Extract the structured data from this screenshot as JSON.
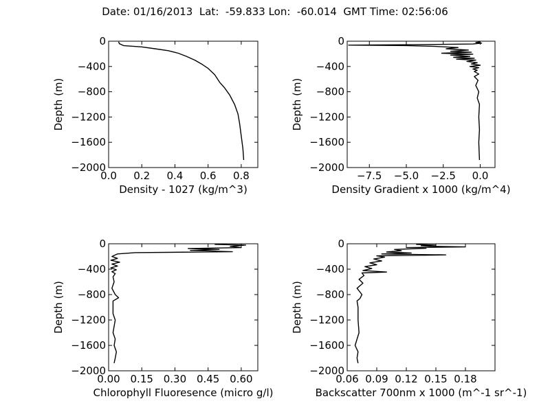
{
  "title": "Date: 01/16/2013  Lat:  -59.833 Lon:  -60.014  GMT Time: 02:56:06",
  "chart_data": [
    {
      "type": "line",
      "xlabel": "Density - 1027 (kg/m^3)",
      "ylabel": "Depth (m)",
      "xlim": [
        0.0,
        0.9
      ],
      "ylim": [
        -2000,
        0
      ],
      "xticks": [
        0.0,
        0.2,
        0.4,
        0.6,
        0.8
      ],
      "xtick_labels": [
        "0.0",
        "0.2",
        "0.4",
        "0.6",
        "0.8"
      ],
      "yticks": [
        0,
        -400,
        -800,
        -1200,
        -1600,
        -2000
      ],
      "ytick_labels": [
        "0",
        "−400",
        "−800",
        "−1200",
        "−1600",
        "−2000"
      ],
      "series": [
        {
          "color": "#000000",
          "points": [
            [
              0.06,
              -10
            ],
            [
              0.065,
              -40
            ],
            [
              0.09,
              -70
            ],
            [
              0.2,
              -90
            ],
            [
              0.28,
              -120
            ],
            [
              0.36,
              -150
            ],
            [
              0.42,
              -190
            ],
            [
              0.47,
              -240
            ],
            [
              0.52,
              -300
            ],
            [
              0.56,
              -360
            ],
            [
              0.6,
              -430
            ],
            [
              0.64,
              -530
            ],
            [
              0.67,
              -650
            ],
            [
              0.7,
              -740
            ],
            [
              0.73,
              -850
            ],
            [
              0.76,
              -1000
            ],
            [
              0.78,
              -1150
            ],
            [
              0.79,
              -1300
            ],
            [
              0.8,
              -1500
            ],
            [
              0.81,
              -1700
            ],
            [
              0.815,
              -1880
            ]
          ]
        }
      ]
    },
    {
      "type": "line",
      "xlabel": "Density Gradient x 1000 (kg/m^4)",
      "ylabel": "Depth (m)",
      "xlim": [
        -9.0,
        1.0
      ],
      "ylim": [
        -2000,
        0
      ],
      "xticks": [
        -7.5,
        -5.0,
        -2.5,
        0.0
      ],
      "xtick_labels": [
        "−7.5",
        "−5.0",
        "−2.5",
        "0.0"
      ],
      "yticks": [
        0,
        -400,
        -800,
        -1200,
        -1600,
        -2000
      ],
      "ytick_labels": [
        "0",
        "−400",
        "−800",
        "−1200",
        "−1600",
        "−2000"
      ],
      "series": [
        {
          "color": "#000000",
          "points": [
            [
              0.0,
              -10
            ],
            [
              -0.3,
              -20
            ],
            [
              0.1,
              -30
            ],
            [
              -0.5,
              -45
            ],
            [
              -4.5,
              -55
            ],
            [
              -8.9,
              -62
            ],
            [
              -5.0,
              -70
            ],
            [
              -3.2,
              -80
            ],
            [
              -1.5,
              -100
            ],
            [
              -2.3,
              -120
            ],
            [
              -0.8,
              -140
            ],
            [
              -2.0,
              -160
            ],
            [
              -0.6,
              -175
            ],
            [
              -2.6,
              -190
            ],
            [
              -0.5,
              -205
            ],
            [
              -2.0,
              -220
            ],
            [
              -0.7,
              -240
            ],
            [
              -1.8,
              -255
            ],
            [
              -0.4,
              -270
            ],
            [
              -1.6,
              -285
            ],
            [
              -0.3,
              -300
            ],
            [
              -0.9,
              -320
            ],
            [
              -0.2,
              -340
            ],
            [
              -0.6,
              -360
            ],
            [
              0.0,
              -380
            ],
            [
              -0.7,
              -400
            ],
            [
              -0.1,
              -420
            ],
            [
              -0.5,
              -440
            ],
            [
              -0.2,
              -460
            ],
            [
              -0.4,
              -480
            ],
            [
              -0.1,
              -520
            ],
            [
              -0.4,
              -560
            ],
            [
              -0.15,
              -620
            ],
            [
              -0.3,
              -700
            ],
            [
              -0.1,
              -800
            ],
            [
              -0.2,
              -900
            ],
            [
              -0.05,
              -1000
            ],
            [
              -0.1,
              -1200
            ],
            [
              -0.05,
              -1400
            ],
            [
              -0.1,
              -1600
            ],
            [
              -0.05,
              -1880
            ]
          ]
        }
      ]
    },
    {
      "type": "line",
      "xlabel": "Chlorophyll Fluoresence (micro g/l)",
      "ylabel": "Depth (m)",
      "xlim": [
        0.0,
        0.675
      ],
      "ylim": [
        -2000,
        0
      ],
      "xticks": [
        0.0,
        0.15,
        0.3,
        0.45,
        0.6
      ],
      "xtick_labels": [
        "0.00",
        "0.15",
        "0.30",
        "0.45",
        "0.60"
      ],
      "yticks": [
        0,
        -400,
        -800,
        -1200,
        -1600,
        -2000
      ],
      "ytick_labels": [
        "0",
        "−400",
        "−800",
        "−1200",
        "−1600",
        "−2000"
      ],
      "series": [
        {
          "color": "#000000",
          "points": [
            [
              0.48,
              -10
            ],
            [
              0.62,
              -20
            ],
            [
              0.55,
              -40
            ],
            [
              0.6,
              -60
            ],
            [
              0.36,
              -75
            ],
            [
              0.5,
              -90
            ],
            [
              0.37,
              -105
            ],
            [
              0.56,
              -125
            ],
            [
              0.12,
              -140
            ],
            [
              0.04,
              -160
            ],
            [
              0.015,
              -200
            ],
            [
              0.04,
              -230
            ],
            [
              0.01,
              -260
            ],
            [
              0.05,
              -290
            ],
            [
              0.015,
              -320
            ],
            [
              0.04,
              -350
            ],
            [
              0.01,
              -380
            ],
            [
              0.035,
              -410
            ],
            [
              0.015,
              -440
            ],
            [
              0.03,
              -470
            ],
            [
              0.02,
              -520
            ],
            [
              0.025,
              -600
            ],
            [
              0.015,
              -700
            ],
            [
              0.03,
              -800
            ],
            [
              0.045,
              -850
            ],
            [
              0.02,
              -900
            ],
            [
              0.02,
              -1100
            ],
            [
              0.03,
              -1200
            ],
            [
              0.02,
              -1400
            ],
            [
              0.03,
              -1500
            ],
            [
              0.025,
              -1600
            ],
            [
              0.035,
              -1700
            ],
            [
              0.03,
              -1800
            ],
            [
              0.025,
              -1880
            ]
          ]
        }
      ]
    },
    {
      "type": "line",
      "xlabel": "Backscatter 700nm x 1000 (m^-1 sr^-1)",
      "ylabel": "Depth (m)",
      "xlim": [
        0.06,
        0.21
      ],
      "ylim": [
        -2000,
        0
      ],
      "xticks": [
        0.06,
        0.09,
        0.12,
        0.15,
        0.18
      ],
      "xtick_labels": [
        "0.06",
        "0.09",
        "0.12",
        "0.15",
        "0.18"
      ],
      "yticks": [
        0,
        -400,
        -800,
        -1200,
        -1600,
        -2000
      ],
      "ytick_labels": [
        "0",
        "−400",
        "−800",
        "−1200",
        "−1600",
        "−2000"
      ],
      "series": [
        {
          "color": "#000000",
          "points": [
            [
              0.13,
              -10
            ],
            [
              0.15,
              -20
            ],
            [
              0.135,
              -30
            ],
            [
              0.145,
              -40
            ],
            [
              0.18,
              -50
            ],
            [
              0.12,
              -60
            ],
            [
              0.14,
              -70
            ],
            [
              0.108,
              -90
            ],
            [
              0.115,
              -110
            ],
            [
              0.1,
              -130
            ],
            [
              0.125,
              -145
            ],
            [
              0.095,
              -160
            ],
            [
              0.16,
              -175
            ],
            [
              0.09,
              -190
            ],
            [
              0.098,
              -210
            ],
            [
              0.087,
              -240
            ],
            [
              0.095,
              -270
            ],
            [
              0.083,
              -300
            ],
            [
              0.09,
              -330
            ],
            [
              0.078,
              -360
            ],
            [
              0.085,
              -390
            ],
            [
              0.076,
              -420
            ],
            [
              0.1,
              -445
            ],
            [
              0.075,
              -460
            ],
            [
              0.077,
              -500
            ],
            [
              0.072,
              -560
            ],
            [
              0.076,
              -620
            ],
            [
              0.07,
              -700
            ],
            [
              0.075,
              -800
            ],
            [
              0.073,
              -860
            ],
            [
              0.07,
              -900
            ],
            [
              0.071,
              -1000
            ],
            [
              0.071,
              -1200
            ],
            [
              0.072,
              -1400
            ],
            [
              0.068,
              -1600
            ],
            [
              0.071,
              -1700
            ],
            [
              0.07,
              -1800
            ],
            [
              0.071,
              -1880
            ]
          ]
        }
      ]
    }
  ]
}
